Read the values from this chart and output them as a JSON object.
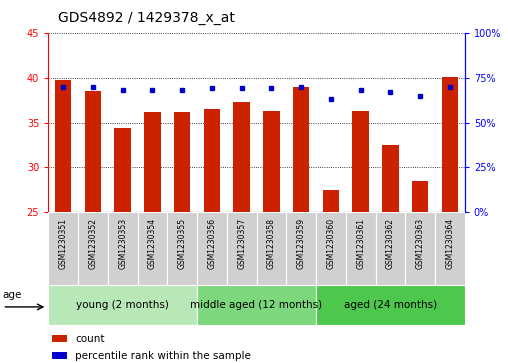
{
  "title": "GDS4892 / 1429378_x_at",
  "samples": [
    "GSM1230351",
    "GSM1230352",
    "GSM1230353",
    "GSM1230354",
    "GSM1230355",
    "GSM1230356",
    "GSM1230357",
    "GSM1230358",
    "GSM1230359",
    "GSM1230360",
    "GSM1230361",
    "GSM1230362",
    "GSM1230363",
    "GSM1230364"
  ],
  "counts": [
    39.7,
    38.5,
    34.4,
    36.2,
    36.2,
    36.5,
    37.3,
    36.3,
    39.0,
    27.5,
    36.3,
    32.5,
    28.5,
    40.1
  ],
  "percentiles": [
    70,
    70,
    68,
    68,
    68,
    69,
    69,
    69,
    70,
    63,
    68,
    67,
    65,
    70
  ],
  "groups": [
    {
      "label": "young (2 months)",
      "start": 0,
      "end": 5
    },
    {
      "label": "middle aged (12 months)",
      "start": 5,
      "end": 9
    },
    {
      "label": "aged (24 months)",
      "start": 9,
      "end": 14
    }
  ],
  "group_colors": [
    "#b8e8b8",
    "#7dd87d",
    "#4dc84d"
  ],
  "ylim_left": [
    25,
    45
  ],
  "ylim_right": [
    0,
    100
  ],
  "yticks_left": [
    25,
    30,
    35,
    40,
    45
  ],
  "yticks_right": [
    0,
    25,
    50,
    75,
    100
  ],
  "ytick_right_labels": [
    "0%",
    "25%",
    "50%",
    "75%",
    "100%"
  ],
  "bar_color": "#CC2200",
  "dot_color": "#0000CC",
  "bar_width": 0.55,
  "grid_color": "black",
  "plot_bg_color": "#FFFFFF",
  "age_label": "age",
  "legend_count_label": "count",
  "legend_percentile_label": "percentile rank within the sample",
  "title_fontsize": 10,
  "tick_fontsize": 7,
  "sample_fontsize": 5.5,
  "group_label_fontsize": 7.5,
  "legend_fontsize": 7.5
}
